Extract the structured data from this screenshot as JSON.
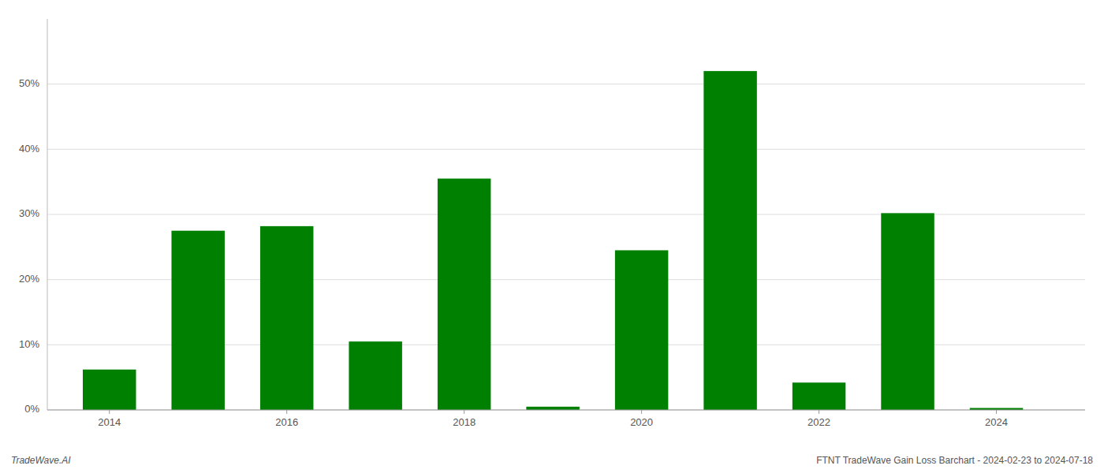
{
  "chart_data": {
    "type": "bar",
    "title": "FTNT TradeWave Gain Loss Barchart - 2024-02-23 to 2024-07-18",
    "annotations": [
      "TradeWave.AI"
    ],
    "x": [
      2014,
      2015,
      2016,
      2017,
      2018,
      2019,
      2020,
      2021,
      2022,
      2023,
      2024
    ],
    "values": [
      0.062,
      0.275,
      0.282,
      0.105,
      0.355,
      0.005,
      0.245,
      0.52,
      0.042,
      0.302,
      0.003
    ],
    "color": "#008000",
    "xlim": [
      2013.3,
      2025.0
    ],
    "xticks": [
      2014,
      2016,
      2018,
      2020,
      2022,
      2024
    ],
    "ylim": [
      0,
      0.6
    ],
    "yticks": [
      {
        "value": 0.0,
        "label": "0%"
      },
      {
        "value": 0.1,
        "label": "10%"
      },
      {
        "value": 0.2,
        "label": "20%"
      },
      {
        "value": 0.3,
        "label": "30%"
      },
      {
        "value": 0.4,
        "label": "40%"
      },
      {
        "value": 0.5,
        "label": "50%"
      }
    ],
    "grid": true
  }
}
